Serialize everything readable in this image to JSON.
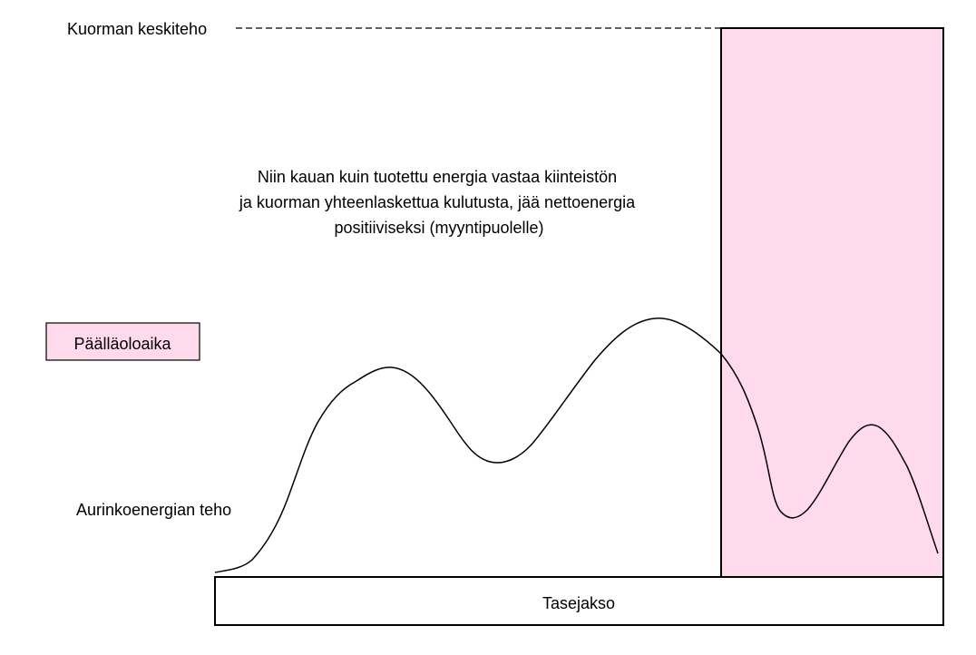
{
  "labels": {
    "load_average": "Kuorman keskiteho",
    "note_lines": [
      "Niin kauan kuin tuotettu energia vastaa kiinteistön",
      "ja kuorman yhteenlaskettua kulutusta, jää nettoenergia",
      "positiiviseksi (myyntipuolelle)"
    ],
    "on_time_legend": "Päälläoloaika",
    "solar_power": "Aurinkoenergian teho",
    "balance_period": "Tasejakso"
  },
  "colors": {
    "on_time_fill": "#ffd9ec",
    "line": "#000000",
    "background": "#ffffff"
  }
}
